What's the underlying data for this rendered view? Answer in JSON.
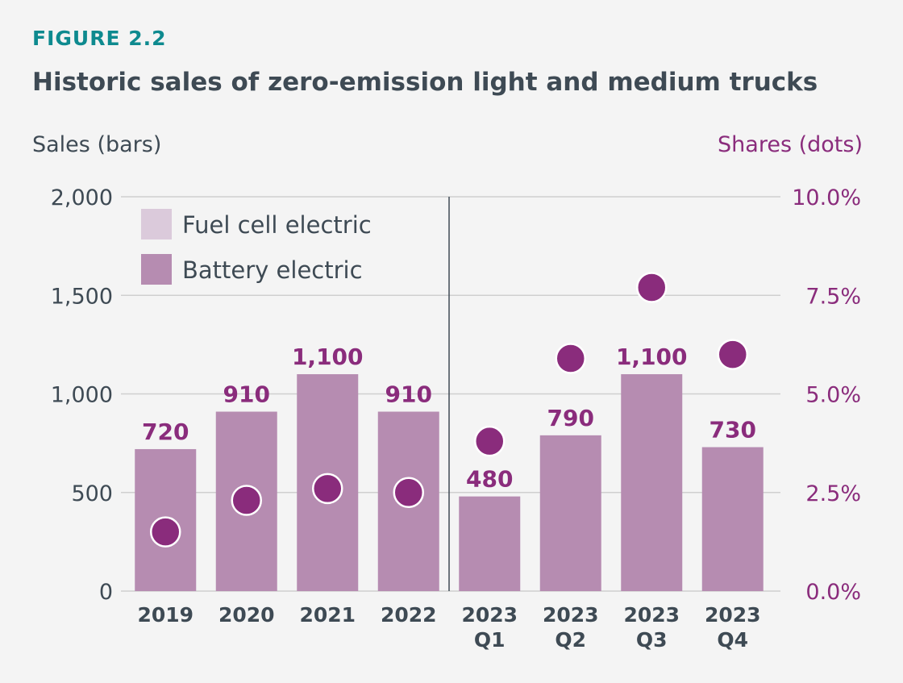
{
  "figure_label": "FIGURE 2.2",
  "title": "Historic sales of zero-emission light and medium trucks",
  "chart_data": {
    "type": "bar",
    "categories": [
      [
        "2019"
      ],
      [
        "2020"
      ],
      [
        "2021"
      ],
      [
        "2022"
      ],
      [
        "2023",
        "Q1"
      ],
      [
        "2023",
        "Q2"
      ],
      [
        "2023",
        "Q3"
      ],
      [
        "2023",
        "Q4"
      ]
    ],
    "series": [
      {
        "name": "Fuel cell electric",
        "values": [
          0,
          0,
          0,
          0,
          0,
          0,
          0,
          0
        ],
        "color": "#dbcadb"
      },
      {
        "name": "Battery electric",
        "values": [
          720,
          910,
          1100,
          910,
          480,
          790,
          1100,
          730
        ],
        "color": "#b68cb1"
      }
    ],
    "bar_labels": [
      "720",
      "910",
      "1,100",
      "910",
      "480",
      "790",
      "1,100",
      "730"
    ],
    "shares": [
      1.5,
      2.3,
      2.6,
      2.5,
      3.8,
      5.9,
      7.7,
      6.0
    ],
    "share_color": "#8a2c7c",
    "ylabel": "Sales (bars)",
    "ylabel_right": "Shares (dots)",
    "ylim": [
      0,
      2000
    ],
    "yticks": [
      0,
      500,
      1000,
      1500,
      2000
    ],
    "ytick_labels": [
      "0",
      "500",
      "1,000",
      "1,500",
      "2,000"
    ],
    "ylim_right": [
      0,
      10
    ],
    "yticks_right": [
      0,
      2.5,
      5,
      7.5,
      10
    ],
    "ytick_labels_right": [
      "0.0%",
      "2.5%",
      "5.0%",
      "7.5%",
      "10.0%"
    ],
    "grid": true,
    "legend_position": "top-left",
    "divider_after_category": 3
  }
}
